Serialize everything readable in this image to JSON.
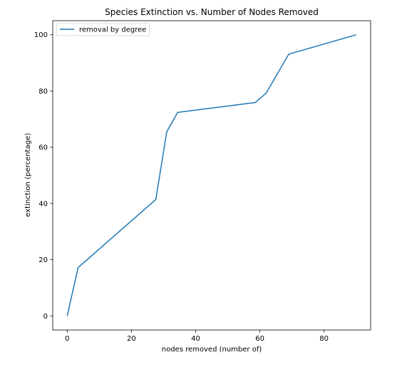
{
  "chart_data": {
    "type": "line",
    "title": "Species Extinction vs. Number of Nodes Removed",
    "xlabel": "nodes removed (number of)",
    "ylabel": "extinction (percentage)",
    "xlim": [
      -4.5,
      94.5
    ],
    "ylim": [
      -5,
      105
    ],
    "xticks": [
      0,
      20,
      40,
      60,
      80
    ],
    "yticks": [
      0,
      20,
      40,
      60,
      80,
      100
    ],
    "grid": false,
    "legend": "top-left",
    "series": [
      {
        "name": "removal by degree",
        "color": "#1f77b4",
        "x": [
          0,
          3.4,
          27.6,
          31,
          34.4,
          58.6,
          62,
          69,
          90
        ],
        "y": [
          0,
          17.2,
          41.4,
          65.5,
          72.4,
          75.9,
          79.3,
          93.1,
          100
        ]
      }
    ]
  }
}
